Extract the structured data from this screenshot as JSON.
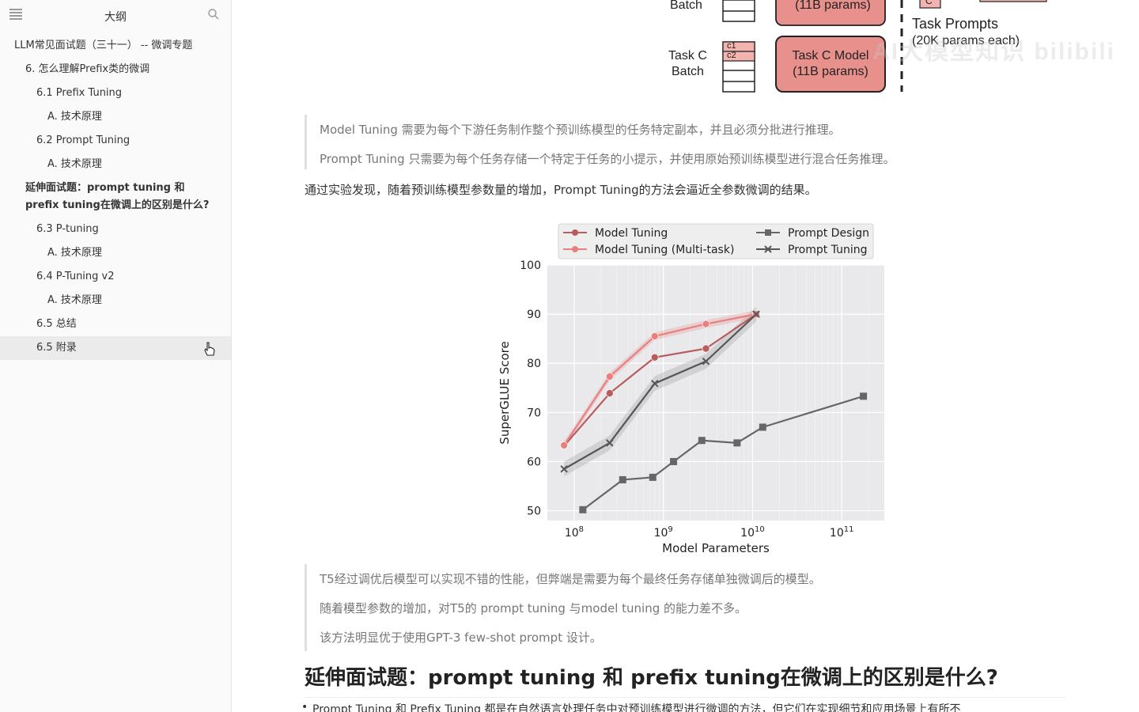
{
  "sidebar": {
    "title": "大纲",
    "toc": [
      {
        "label": "LLM常见面试题（三十一） -- 微调专题",
        "level": 1
      },
      {
        "label": "6. 怎么理解Prefix类的微调",
        "level": 2
      },
      {
        "label": "6.1 Prefix Tuning",
        "level": 3
      },
      {
        "label": "A. 技术原理",
        "level": 4
      },
      {
        "label": "6.2 Prompt Tuning",
        "level": 3
      },
      {
        "label": "A. 技术原理",
        "level": 4
      },
      {
        "label": "延伸面试题：prompt tuning 和 prefix tuning在微调上的区别是什么?",
        "level": 2,
        "bold": true
      },
      {
        "label": "6.3 P-tuning",
        "level": 3
      },
      {
        "label": "A. 技术原理",
        "level": 4
      },
      {
        "label": "6.4 P-Tuning v2",
        "level": 3
      },
      {
        "label": "A. 技术原理",
        "level": 4
      },
      {
        "label": "6.5 总结",
        "level": 3
      },
      {
        "label": "6.5 附录",
        "level": 3,
        "active": true
      }
    ]
  },
  "figure_top": {
    "batch_top": "Batch",
    "model_top": "(11B params)",
    "task_label": "Task C",
    "batch_label": "Batch",
    "c1": "c1",
    "c2": "c2",
    "model_line1": "Task C Model",
    "model_line2": "(11B params)",
    "prompts_line1": "Task Prompts",
    "prompts_line2": "(20K params each)",
    "c_box": "C",
    "watermark": "AI大模型知识 bilibili"
  },
  "quote1": [
    "Model Tuning 需要为每个下游任务制作整个预训练模型的任务特定副本，并且必须分批进行推理。",
    "Prompt Tuning 只需要为每个任务存储一个特定于任务的小提示，并使用原始预训练模型进行混合任务推理。"
  ],
  "para1": "通过实验发现，随着预训练模型参数量的增加，Prompt Tuning的方法会逼近全参数微调的结果。",
  "chart_data": {
    "type": "line",
    "xlabel": "Model Parameters",
    "ylabel": "SuperGLUE Score",
    "xscale": "log",
    "xlim": [
      50000000,
      300000000000
    ],
    "ylim": [
      48,
      100
    ],
    "yticks": [
      50,
      60,
      70,
      80,
      90,
      100
    ],
    "xticks": [
      {
        "value": 100000000,
        "base": "10",
        "exp": "8"
      },
      {
        "value": 1000000000,
        "base": "10",
        "exp": "9"
      },
      {
        "value": 10000000000,
        "base": "10",
        "exp": "10"
      },
      {
        "value": 100000000000,
        "base": "10",
        "exp": "11"
      }
    ],
    "grid": true,
    "legend_position": "top",
    "series": [
      {
        "name": "Model Tuning",
        "color": "#b85c5c",
        "marker": "circle",
        "points": [
          [
            77000000,
            63.2
          ],
          [
            250000000,
            73.9
          ],
          [
            800000000,
            81.2
          ],
          [
            3000000000,
            83.0
          ],
          [
            11000000000,
            90.0
          ]
        ]
      },
      {
        "name": "Model Tuning (Multi-task)",
        "color": "#e88080",
        "marker": "circle",
        "points": [
          [
            77000000,
            63.3
          ],
          [
            250000000,
            77.3
          ],
          [
            800000000,
            85.5
          ],
          [
            3000000000,
            88.0
          ],
          [
            11000000000,
            90.0
          ]
        ]
      },
      {
        "name": "Prompt Design",
        "color": "#666666",
        "marker": "square",
        "points": [
          [
            125000000,
            50.2
          ],
          [
            350000000,
            56.3
          ],
          [
            760000000,
            56.8
          ],
          [
            1300000000,
            60.0
          ],
          [
            2700000000,
            64.3
          ],
          [
            6700000000,
            63.8
          ],
          [
            13000000000,
            67.0
          ],
          [
            175000000000,
            73.3
          ]
        ]
      },
      {
        "name": "Prompt Tuning",
        "color": "#555555",
        "marker": "x",
        "points": [
          [
            77000000,
            58.5
          ],
          [
            250000000,
            63.8
          ],
          [
            800000000,
            75.9
          ],
          [
            3000000000,
            80.4
          ],
          [
            11000000000,
            90.0
          ]
        ]
      }
    ]
  },
  "quote2": [
    "T5经过调优后模型可以实现不错的性能，但弊端是需要为每个最终任务存储单独微调后的模型。",
    "随着模型参数的增加，对T5的 prompt tuning 与model tuning 的能力差不多。",
    "该方法明显优于使用GPT-3 few-shot prompt 设计。"
  ],
  "heading": "延伸面试题：prompt tuning 和 prefix tuning在微调上的区别是什么?",
  "bullet1": "Prompt Tuning 和 Prefix Tuning 都是在自然语言处理任务中对预训练模型进行微调的方法，但它们在实现细节和应用场景上有所不"
}
